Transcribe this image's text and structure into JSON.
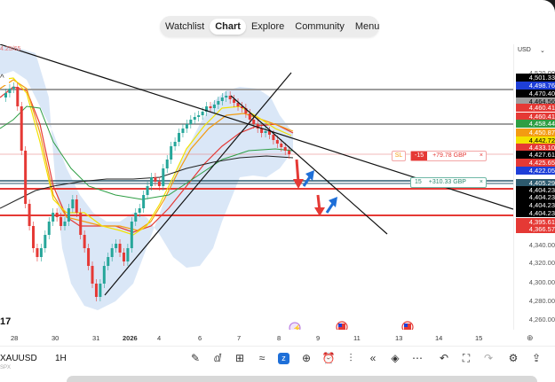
{
  "nav": {
    "items": [
      "Watchlist",
      "Chart",
      "Explore",
      "Community",
      "Menu"
    ],
    "active_index": 1
  },
  "corner_label": "4.25/65",
  "currency": {
    "label": "USD",
    "chevron": "⌄"
  },
  "price_axis": [
    {
      "text": "4,520.00",
      "bg": "#ffffff",
      "fg": "#555555"
    },
    {
      "text": "4,501.33",
      "bg": "#000000",
      "fg": "#ffffff"
    },
    {
      "text": "4,498.76",
      "bg": "#1e3fd8",
      "fg": "#ffffff"
    },
    {
      "text": "4,470.40",
      "bg": "#000000",
      "fg": "#ffffff"
    },
    {
      "text": "4,464.56",
      "bg": "#9e9e9e",
      "fg": "#000000"
    },
    {
      "text": "4,460.41",
      "bg": "#e53935",
      "fg": "#ffffff"
    },
    {
      "text": "4,460.41",
      "bg": "#e53935",
      "fg": "#ffffff"
    },
    {
      "text": "4,458.44",
      "bg": "#2e9e44",
      "fg": "#ffffff"
    },
    {
      "text": "4,450.87",
      "bg": "#f39c12",
      "fg": "#ffffff"
    },
    {
      "text": "4,442.72",
      "bg": "#f3e200",
      "fg": "#000000"
    },
    {
      "text": "4,433.10",
      "bg": "#e53935",
      "fg": "#ffffff"
    },
    {
      "text": "4,427.61",
      "bg": "#000000",
      "fg": "#ffffff"
    },
    {
      "text": "4,425.65",
      "bg": "#e53935",
      "fg": "#ffffff"
    },
    {
      "text": "4,422.05",
      "bg": "#1e3fd8",
      "fg": "#ffffff"
    },
    {
      "text": "4,405.29",
      "bg": "#2d5a6e",
      "fg": "#ffffff"
    },
    {
      "text": "4,404.23",
      "bg": "#000000",
      "fg": "#ffffff"
    },
    {
      "text": "4,404.23",
      "bg": "#000000",
      "fg": "#ffffff"
    },
    {
      "text": "4,404.23",
      "bg": "#000000",
      "fg": "#ffffff"
    },
    {
      "text": "4,404.23",
      "bg": "#000000",
      "fg": "#ffffff"
    },
    {
      "text": "4,395.61",
      "bg": "#e53935",
      "fg": "#ffffff"
    },
    {
      "text": "4,366.57",
      "bg": "#e53935",
      "fg": "#ffffff"
    },
    {
      "text": "4,340.00",
      "bg": "#ffffff",
      "fg": "#555555"
    },
    {
      "text": "4,320.00",
      "bg": "#ffffff",
      "fg": "#555555"
    },
    {
      "text": "4,300.00",
      "bg": "#ffffff",
      "fg": "#555555"
    },
    {
      "text": "4,280.00",
      "bg": "#ffffff",
      "fg": "#555555"
    },
    {
      "text": "4,260.00",
      "bg": "#ffffff",
      "fg": "#555555"
    }
  ],
  "sl_order": {
    "label": "SL",
    "qty": "-15",
    "pnl": "+79.78 GBP",
    "close": "×"
  },
  "tp_order": {
    "qty": "15",
    "pnl": "+310.33 GBP",
    "close": "×"
  },
  "time_axis": [
    "28",
    "30",
    "31",
    "2026",
    "4",
    "6",
    "7",
    "8",
    "9",
    "11",
    "13",
    "14",
    "15"
  ],
  "symbol": {
    "name": "XAUUSD",
    "timeframe": "1H",
    "sub": "SPX"
  },
  "event_icons": [
    "lightning-event-icon",
    "us-flag-event-icon",
    "us-flag-event-icon"
  ],
  "tv_logo": "17",
  "toolbar_icons": [
    "pen-icon",
    "indicators-icon",
    "layout-grid-icon",
    "trend-icon",
    "logo-icon",
    "plus-icon",
    "alarm-icon",
    "bar-replay-icon",
    "rewind-icon",
    "layers-icon",
    "ellipsis-icon",
    "undo-icon",
    "fullscreen-icon",
    "redo-icon",
    "settings-icon",
    "share-icon"
  ]
}
